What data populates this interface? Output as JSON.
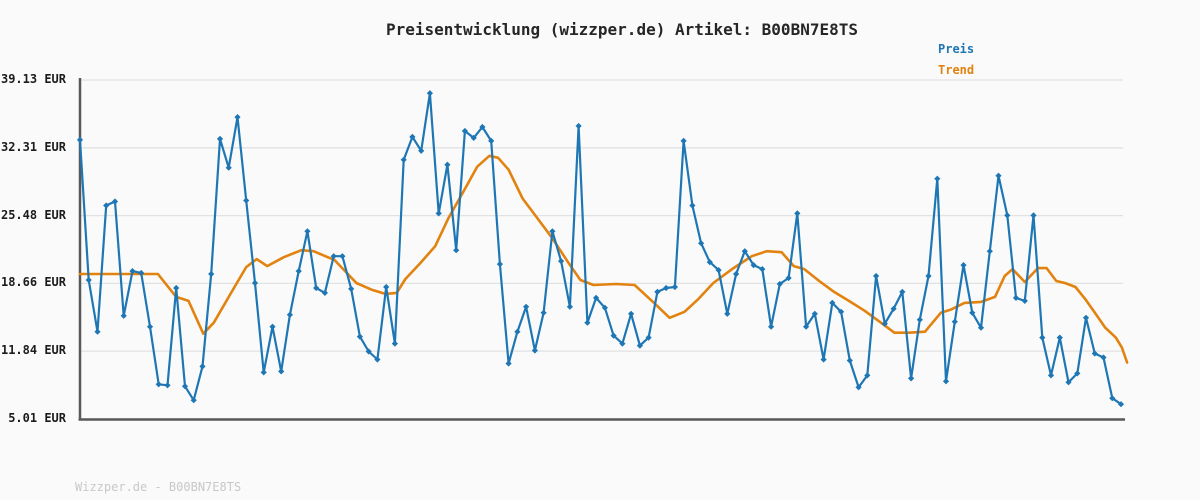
{
  "title": "Preisentwicklung (wizzper.de) Artikel: B00BN7E8TS",
  "footer": "Wizzper.de - B00BN7E8TS",
  "legend": {
    "preis_label": "Preis",
    "trend_label": "Trend"
  },
  "colors": {
    "preis": "#1e77b4",
    "trend": "#e2820f",
    "grid": "#e2e2e2",
    "axis": "#58585a",
    "title": "#262626",
    "tick_label": "#1c1c1c",
    "footer": "#c8c8c8",
    "background": "#fafafa"
  },
  "y_axis": {
    "tick_labels": [
      "39.13 EUR",
      "32.31 EUR",
      "25.48 EUR",
      "18.66 EUR",
      "11.84 EUR",
      "5.01 EUR"
    ],
    "tick_values": [
      39.13,
      32.31,
      25.48,
      18.66,
      11.84,
      5.01
    ]
  },
  "chart_data": {
    "type": "line",
    "title": "Preisentwicklung (wizzper.de) Artikel: B00BN7E8TS",
    "xlabel": "",
    "ylabel": "EUR",
    "ylim": [
      5.01,
      39.13
    ],
    "x_type": "index",
    "x_count": 120,
    "grid": true,
    "legend_position": "top-right",
    "series": [
      {
        "name": "Preis",
        "style": "line+diamond-markers",
        "color": "#1e77b4",
        "values": [
          33.1,
          19.0,
          13.8,
          26.5,
          26.9,
          15.4,
          19.9,
          19.7,
          14.3,
          8.5,
          8.4,
          18.2,
          8.3,
          6.9,
          10.3,
          19.6,
          33.2,
          30.3,
          35.4,
          27.0,
          18.7,
          9.7,
          14.3,
          9.8,
          15.5,
          19.9,
          23.9,
          18.2,
          17.7,
          21.4,
          21.4,
          18.1,
          13.3,
          11.8,
          11.0,
          18.3,
          12.6,
          31.1,
          33.4,
          32.0,
          37.8,
          25.7,
          30.6,
          22.0,
          34.0,
          33.3,
          34.4,
          33.0,
          20.6,
          10.6,
          13.8,
          16.3,
          11.9,
          15.7,
          23.9,
          20.9,
          16.3,
          34.5,
          14.7,
          17.2,
          16.2,
          13.4,
          12.6,
          15.6,
          12.4,
          13.2,
          17.8,
          18.2,
          18.3,
          33.0,
          26.5,
          22.7,
          20.8,
          20.0,
          15.6,
          19.6,
          21.9,
          20.5,
          20.1,
          14.3,
          18.6,
          19.2,
          25.7,
          14.3,
          15.6,
          11.0,
          16.7,
          15.8,
          10.9,
          8.2,
          9.4,
          19.4,
          14.6,
          16.1,
          17.8,
          9.1,
          15.0,
          19.4,
          29.2,
          8.8,
          14.8,
          20.5,
          15.7,
          14.2,
          21.9,
          29.5,
          25.5,
          17.2,
          16.9,
          25.5,
          13.2,
          9.4,
          13.2,
          8.7,
          9.6,
          15.2,
          11.6,
          11.2,
          7.1,
          6.5
        ]
      },
      {
        "name": "Trend",
        "style": "line",
        "color": "#e2820f",
        "points": [
          [
            0,
            19.6
          ],
          [
            8.9,
            19.6
          ],
          [
            11.0,
            17.3
          ],
          [
            12.4,
            16.9
          ],
          [
            14.1,
            13.6
          ],
          [
            15.3,
            14.7
          ],
          [
            17.2,
            17.6
          ],
          [
            19.0,
            20.3
          ],
          [
            20.2,
            21.1
          ],
          [
            21.4,
            20.4
          ],
          [
            23.3,
            21.3
          ],
          [
            25.3,
            22.0
          ],
          [
            26.7,
            21.9
          ],
          [
            29.1,
            21.0
          ],
          [
            31.6,
            18.7
          ],
          [
            33.4,
            18.0
          ],
          [
            34.9,
            17.6
          ],
          [
            36.2,
            17.7
          ],
          [
            37.2,
            19.1
          ],
          [
            38.9,
            20.7
          ],
          [
            40.6,
            22.4
          ],
          [
            42.1,
            25.2
          ],
          [
            43.7,
            27.7
          ],
          [
            45.4,
            30.4
          ],
          [
            46.8,
            31.5
          ],
          [
            47.8,
            31.3
          ],
          [
            49.0,
            30.1
          ],
          [
            50.6,
            27.2
          ],
          [
            52.3,
            25.2
          ],
          [
            54.0,
            23.2
          ],
          [
            55.7,
            20.9
          ],
          [
            57.2,
            19.0
          ],
          [
            58.7,
            18.5
          ],
          [
            61.3,
            18.6
          ],
          [
            63.4,
            18.5
          ],
          [
            65.5,
            16.8
          ],
          [
            67.4,
            15.2
          ],
          [
            69.1,
            15.8
          ],
          [
            70.7,
            17.1
          ],
          [
            72.4,
            18.7
          ],
          [
            74.7,
            20.2
          ],
          [
            76.8,
            21.4
          ],
          [
            78.5,
            21.9
          ],
          [
            80.2,
            21.8
          ],
          [
            81.6,
            20.4
          ],
          [
            82.8,
            20.1
          ],
          [
            84.5,
            18.9
          ],
          [
            86.2,
            17.8
          ],
          [
            87.9,
            16.9
          ],
          [
            89.7,
            15.9
          ],
          [
            91.4,
            14.8
          ],
          [
            93.1,
            13.7
          ],
          [
            94.8,
            13.7
          ],
          [
            96.6,
            13.8
          ],
          [
            98.4,
            15.7
          ],
          [
            99.5,
            16.0
          ],
          [
            101.1,
            16.7
          ],
          [
            103.0,
            16.8
          ],
          [
            104.6,
            17.3
          ],
          [
            105.7,
            19.4
          ],
          [
            106.6,
            20.1
          ],
          [
            108.0,
            18.8
          ],
          [
            109.5,
            20.2
          ],
          [
            110.5,
            20.2
          ],
          [
            111.6,
            18.9
          ],
          [
            112.6,
            18.7
          ],
          [
            113.8,
            18.3
          ],
          [
            114.9,
            17.1
          ],
          [
            116.1,
            15.6
          ],
          [
            117.2,
            14.2
          ],
          [
            118.4,
            13.2
          ],
          [
            119.1,
            12.2
          ],
          [
            119.7,
            10.7
          ]
        ]
      }
    ]
  }
}
